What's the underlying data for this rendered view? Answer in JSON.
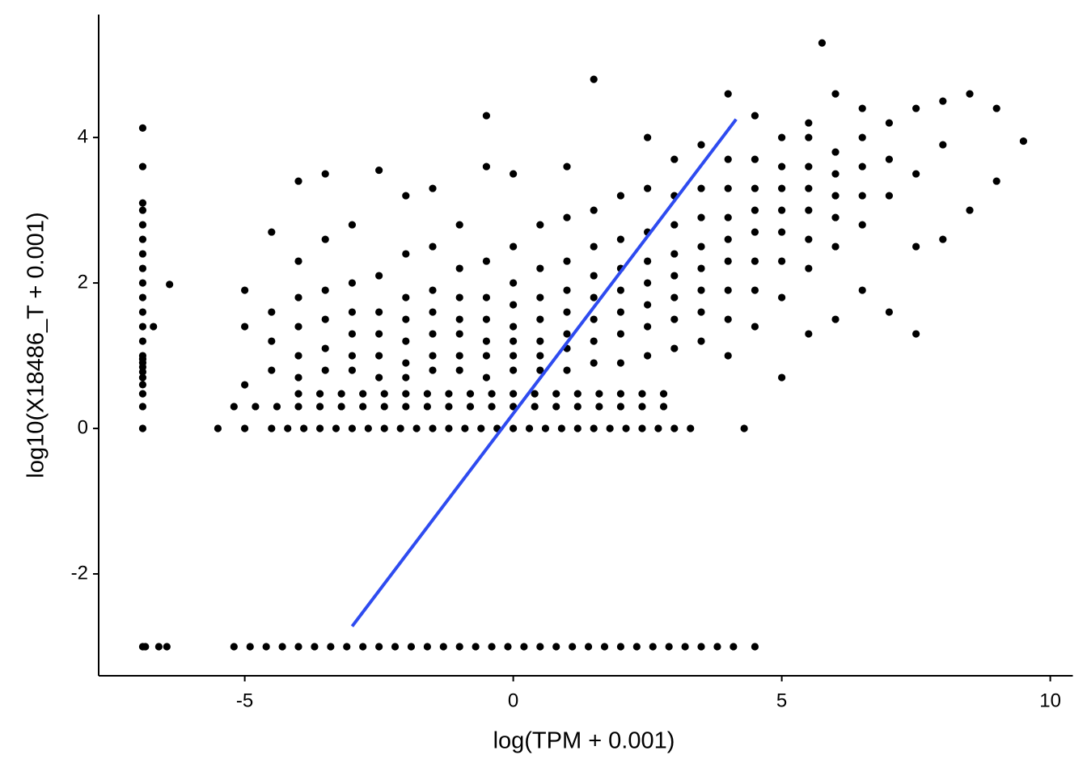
{
  "chart_data": {
    "type": "scatter",
    "xlabel": "log(TPM + 0.001)",
    "ylabel": "log10(X18486_T + 0.001)",
    "xlim": [
      -7.72,
      10.42
    ],
    "ylim": [
      -3.4,
      5.69
    ],
    "xticks": [
      -5,
      0,
      5,
      10
    ],
    "yticks": [
      -2,
      0,
      2,
      4
    ],
    "grid": false,
    "series": [
      {
        "color": "#000000",
        "x": [
          -6.9,
          -6.9,
          -6.9,
          -6.9,
          -6.9,
          -6.9,
          -6.9,
          -6.9,
          -6.9,
          -6.9,
          -6.9,
          -6.9,
          -6.9,
          -6.9,
          -6.9,
          -6.9,
          -6.9,
          -6.9,
          -6.9,
          -6.9,
          -6.9,
          -6.9,
          -6.9,
          -6.9,
          -6.4,
          -6.7,
          -6.85,
          -6.6,
          -6.45,
          -5.2,
          -4.9,
          -4.6,
          -4.3,
          -4,
          -3.7,
          -3.4,
          -3.1,
          -2.8,
          -2.5,
          -2.2,
          -1.9,
          -1.6,
          -1.3,
          -1,
          -0.7,
          -0.4,
          -0.1,
          0.2,
          0.5,
          0.8,
          1.1,
          1.4,
          1.7,
          2,
          2.3,
          2.6,
          2.9,
          3.2,
          3.5,
          3.8,
          4.1,
          4.5,
          -5.5,
          -5,
          -4.5,
          -4.2,
          -3.9,
          -3.6,
          -3.3,
          -3,
          -2.7,
          -2.4,
          -2.1,
          -1.8,
          -1.5,
          -1.2,
          -0.9,
          -0.6,
          -0.3,
          0,
          0.3,
          0.6,
          0.9,
          1.2,
          1.5,
          1.8,
          2.1,
          2.4,
          2.7,
          3,
          3.3,
          4.3,
          -5.2,
          -4.8,
          -4.4,
          -4,
          -3.6,
          -3.2,
          -2.8,
          -2.4,
          -2,
          -1.6,
          -1.2,
          -0.8,
          -0.4,
          0,
          0.4,
          0.8,
          1.2,
          1.6,
          2,
          2.4,
          2.8,
          -4,
          -3.6,
          -3.2,
          -2.8,
          -2.4,
          -2,
          -1.6,
          -1.2,
          -0.8,
          -0.4,
          0,
          0.4,
          0.8,
          1.2,
          1.6,
          2,
          2.4,
          2.8,
          -5,
          -5,
          -5,
          -4.5,
          -4.5,
          -4.5,
          -4.5,
          -4,
          -4,
          -4,
          -4,
          -4,
          -4,
          -3.5,
          -3.5,
          -3.5,
          -3.5,
          -3.5,
          -3.5,
          -3,
          -3,
          -3,
          -3,
          -3,
          -3,
          -2.5,
          -2.5,
          -2.5,
          -2.5,
          -2.5,
          -2.5,
          -2,
          -2,
          -2,
          -2,
          -2,
          -2,
          -2,
          -1.5,
          -1.5,
          -1.5,
          -1.5,
          -1.5,
          -1.5,
          -1.5,
          -1,
          -1,
          -1,
          -1,
          -1,
          -1,
          -1,
          -0.5,
          -0.5,
          -0.5,
          -0.5,
          -0.5,
          -0.5,
          -0.5,
          -0.5,
          0,
          0,
          0,
          0,
          0,
          0,
          0,
          0,
          0.5,
          0.5,
          0.5,
          0.5,
          0.5,
          0.5,
          0.5,
          1,
          1,
          1,
          1,
          1,
          1,
          1,
          1,
          1.5,
          1.5,
          1.5,
          1.5,
          1.5,
          1.5,
          1.5,
          1.5,
          2,
          2,
          2,
          2,
          2,
          2,
          2,
          2.5,
          2.5,
          2.5,
          2.5,
          2.5,
          2.5,
          2.5,
          2.5,
          3,
          3,
          3,
          3,
          3,
          3,
          3,
          3,
          3.5,
          3.5,
          3.5,
          3.5,
          3.5,
          3.5,
          3.5,
          3.5,
          4,
          4,
          4,
          4,
          4,
          4,
          4,
          4,
          4,
          4.5,
          4.5,
          4.5,
          4.5,
          4.5,
          4.5,
          4.5,
          4.5,
          5,
          5,
          5,
          5,
          5,
          5,
          5,
          5,
          5.5,
          5.5,
          5.5,
          5.5,
          5.5,
          5.5,
          5.5,
          5.5,
          6,
          6,
          6,
          6,
          6,
          6,
          6,
          6.5,
          6.5,
          6.5,
          6.5,
          6.5,
          6.5,
          7,
          7,
          7,
          7,
          7.5,
          7.5,
          7.5,
          7.5,
          8,
          8,
          8,
          8.5,
          8.5,
          9,
          9,
          9.5,
          5.75
        ],
        "values": [
          0,
          0.301,
          0.477,
          0.602,
          0.699,
          0.778,
          0.845,
          0.903,
          0.954,
          1,
          1.2,
          1.4,
          1.6,
          1.8,
          2,
          2.2,
          2.4,
          2.6,
          2.8,
          3,
          3.1,
          3.6,
          4.13,
          -3,
          1.98,
          1.4,
          -3,
          -3,
          -3,
          -3,
          -3,
          -3,
          -3,
          -3,
          -3,
          -3,
          -3,
          -3,
          -3,
          -3,
          -3,
          -3,
          -3,
          -3,
          -3,
          -3,
          -3,
          -3,
          -3,
          -3,
          -3,
          -3,
          -3,
          -3,
          -3,
          -3,
          -3,
          -3,
          -3,
          -3,
          -3,
          -3,
          0,
          0,
          0,
          0,
          0,
          0,
          0,
          0,
          0,
          0,
          0,
          0,
          0,
          0,
          0,
          0,
          0,
          0,
          0,
          0,
          0,
          0,
          0,
          0,
          0,
          0,
          0,
          0,
          0,
          0,
          0.301,
          0.301,
          0.301,
          0.301,
          0.301,
          0.301,
          0.301,
          0.301,
          0.301,
          0.301,
          0.301,
          0.301,
          0.301,
          0.301,
          0.301,
          0.301,
          0.301,
          0.301,
          0.301,
          0.301,
          0.301,
          0.477,
          0.477,
          0.477,
          0.477,
          0.477,
          0.477,
          0.477,
          0.477,
          0.477,
          0.477,
          0.477,
          0.477,
          0.477,
          0.477,
          0.477,
          0.477,
          0.477,
          0.477,
          1.4,
          1.9,
          0.6,
          0.8,
          1.2,
          1.6,
          2.7,
          0.7,
          1,
          1.4,
          1.8,
          2.3,
          3.4,
          0.8,
          1.1,
          1.5,
          1.9,
          2.6,
          3.5,
          0.8,
          1,
          1.3,
          1.6,
          2,
          2.8,
          0.7,
          1,
          1.3,
          1.6,
          2.1,
          3.55,
          0.7,
          0.9,
          1.2,
          1.5,
          1.8,
          2.4,
          3.2,
          0.8,
          1,
          1.3,
          1.6,
          1.9,
          2.5,
          3.3,
          0.8,
          1,
          1.3,
          1.5,
          1.8,
          2.2,
          2.8,
          0.7,
          1,
          1.2,
          1.5,
          1.8,
          2.3,
          3.6,
          4.3,
          0.8,
          1,
          1.2,
          1.4,
          1.7,
          2,
          2.5,
          3.5,
          0.8,
          1,
          1.2,
          1.5,
          1.8,
          2.2,
          2.8,
          0.8,
          1.1,
          1.3,
          1.6,
          1.9,
          2.3,
          2.9,
          3.6,
          0.9,
          1.2,
          1.5,
          1.8,
          2.1,
          2.5,
          3,
          4.8,
          0.9,
          1.3,
          1.6,
          1.9,
          2.2,
          2.6,
          3.2,
          1,
          1.4,
          1.7,
          2,
          2.3,
          2.7,
          3.3,
          4,
          1.1,
          1.5,
          1.8,
          2.1,
          2.4,
          2.8,
          3.2,
          3.7,
          1.2,
          1.6,
          1.9,
          2.2,
          2.5,
          2.9,
          3.3,
          3.9,
          1,
          1.5,
          1.9,
          2.3,
          2.6,
          2.9,
          3.3,
          3.7,
          4.6,
          1.4,
          1.9,
          2.3,
          2.7,
          3,
          3.3,
          3.7,
          4.3,
          0.7,
          1.8,
          2.3,
          2.7,
          3,
          3.3,
          3.6,
          4,
          1.3,
          2.2,
          2.6,
          3,
          3.3,
          3.6,
          4,
          4.2,
          1.5,
          2.5,
          2.9,
          3.2,
          3.5,
          3.8,
          4.6,
          1.9,
          2.8,
          3.2,
          3.6,
          4,
          4.4,
          1.6,
          3.2,
          3.7,
          4.2,
          1.3,
          2.5,
          3.5,
          4.4,
          2.6,
          3.9,
          4.5,
          3,
          4.6,
          3.4,
          4.4,
          3.95,
          5.3
        ]
      }
    ],
    "fit": {
      "color": "#2e4bf0",
      "x": [
        -3,
        4.15
      ],
      "values": [
        -2.72,
        4.25
      ]
    }
  }
}
